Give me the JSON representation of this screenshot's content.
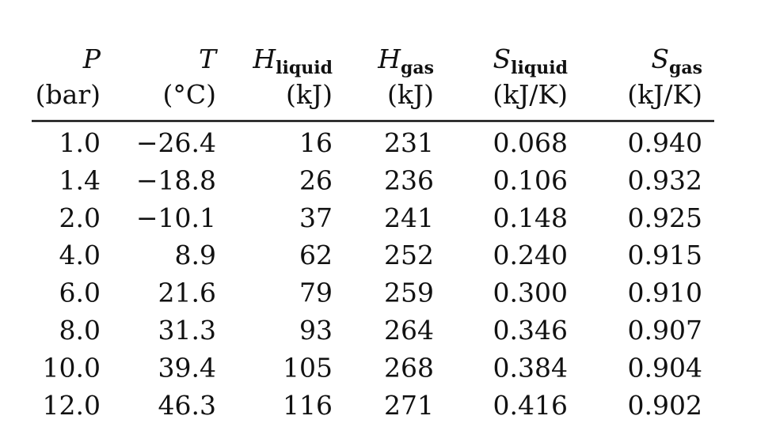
{
  "table": {
    "columns": [
      {
        "symbol": "P",
        "unit": "(bar)"
      },
      {
        "symbol": "T",
        "unit": "(°C)"
      },
      {
        "symbol": "H",
        "subscript": "liquid",
        "unit": "(kJ)"
      },
      {
        "symbol": "H",
        "subscript": "gas",
        "unit": "(kJ)"
      },
      {
        "symbol": "S",
        "subscript": "liquid",
        "unit": "(kJ/K)"
      },
      {
        "symbol": "S",
        "subscript": "gas",
        "unit": "(kJ/K)"
      }
    ],
    "rows": [
      [
        "1.0",
        "−26.4",
        "16",
        "231",
        "0.068",
        "0.940"
      ],
      [
        "1.4",
        "−18.8",
        "26",
        "236",
        "0.106",
        "0.932"
      ],
      [
        "2.0",
        "−10.1",
        "37",
        "241",
        "0.148",
        "0.925"
      ],
      [
        "4.0",
        "8.9",
        "62",
        "252",
        "0.240",
        "0.915"
      ],
      [
        "6.0",
        "21.6",
        "79",
        "259",
        "0.300",
        "0.910"
      ],
      [
        "8.0",
        "31.3",
        "93",
        "264",
        "0.346",
        "0.907"
      ],
      [
        "10.0",
        "39.4",
        "105",
        "268",
        "0.384",
        "0.904"
      ],
      [
        "12.0",
        "46.3",
        "116",
        "271",
        "0.416",
        "0.902"
      ]
    ]
  }
}
